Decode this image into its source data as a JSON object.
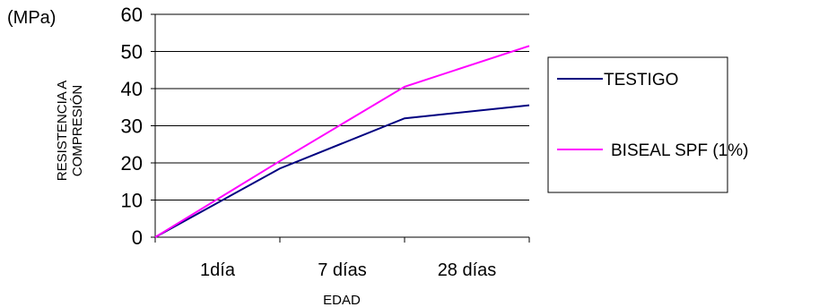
{
  "chart_data": {
    "type": "line",
    "categories": [
      "",
      "1día",
      "7 días",
      "28 días"
    ],
    "series": [
      {
        "name": "TESTIGO",
        "values": [
          0,
          18.5,
          32,
          35.5
        ],
        "color": "#000080"
      },
      {
        "name": "BISEAL SPF (1%)",
        "values": [
          0,
          20.5,
          40.5,
          51.5
        ],
        "color": "#ff00ff"
      }
    ],
    "unit_label": "(MPa)",
    "ylabel_lines": [
      "RESISTENCIA A",
      "COMPRESIÓN"
    ],
    "xlabel": "EDAD",
    "ylim": [
      0,
      60
    ],
    "yticks": [
      0,
      10,
      20,
      30,
      40,
      50,
      60
    ],
    "grid": true,
    "legend_position": "right"
  }
}
